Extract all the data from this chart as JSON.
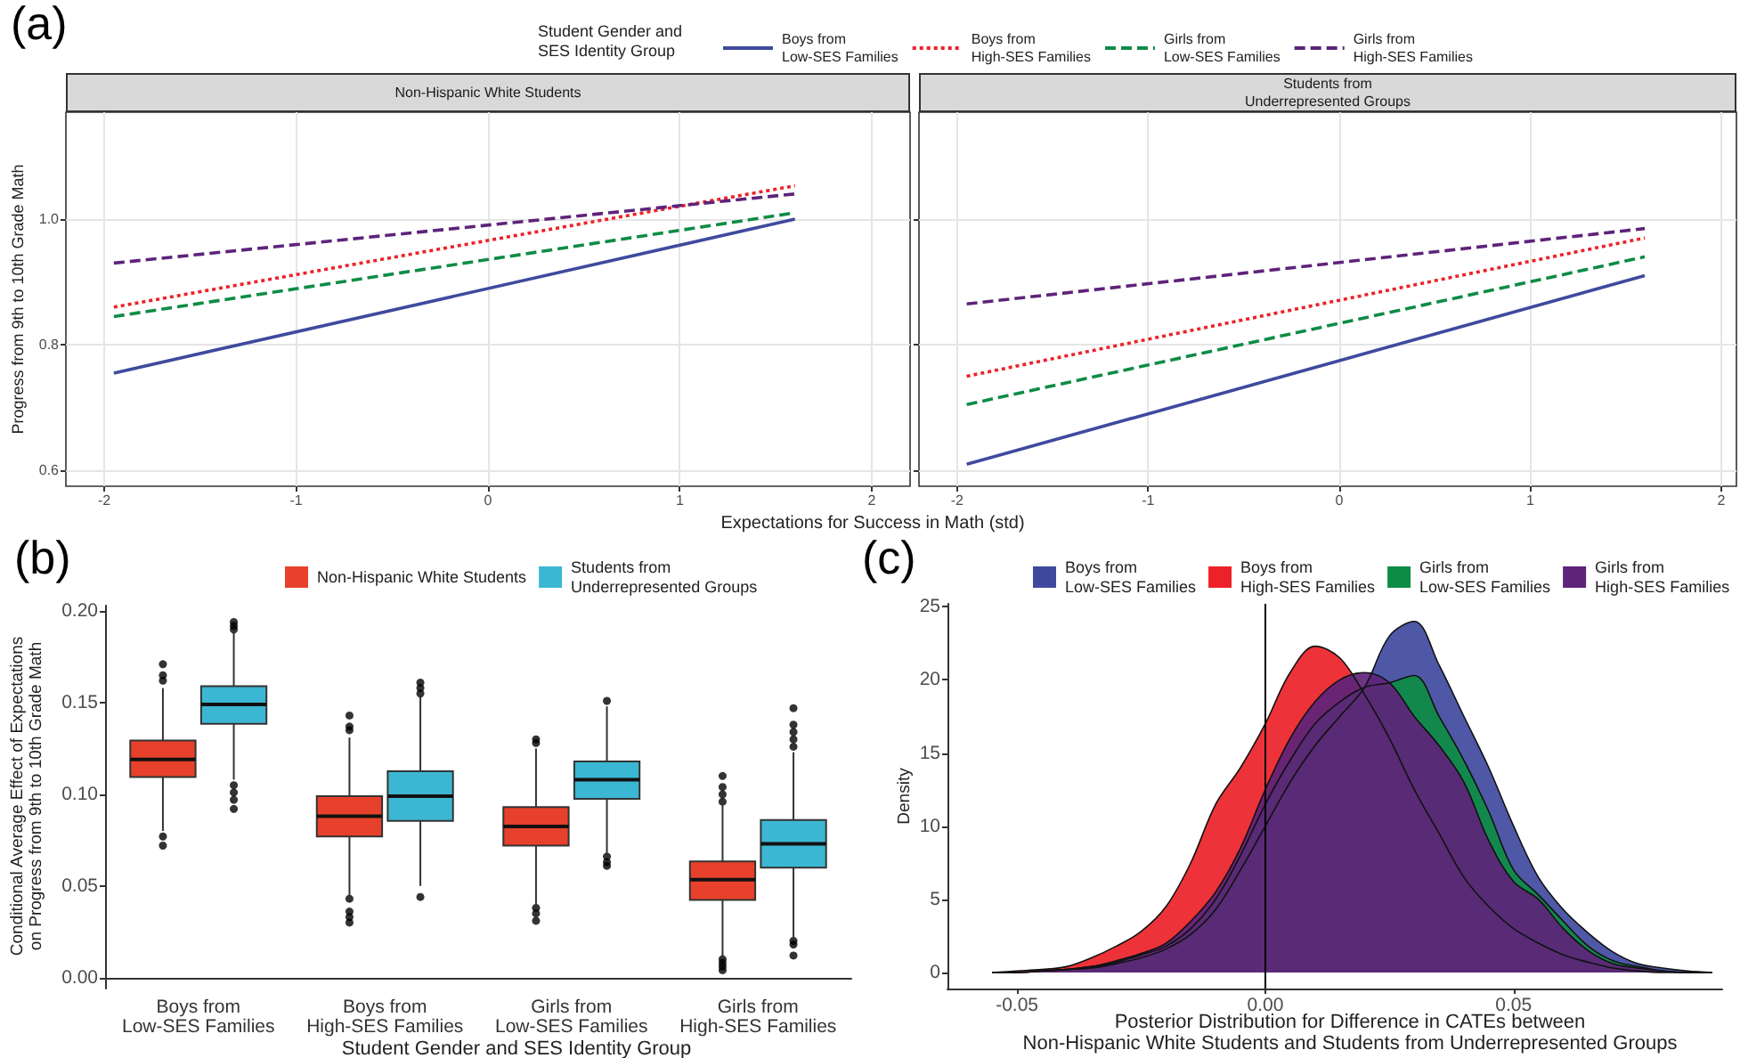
{
  "chart_data": [
    {
      "type": "line",
      "title": "Non-Hispanic White Students",
      "xlabel": "Expectations for Success in Math (std)",
      "ylabel": "Progress from 9th to 10th Grade Math",
      "legend_title": "Student Gender and\nSES Identity Group",
      "annotations": [
        "(a)"
      ],
      "x": [
        -1.95,
        1.6
      ],
      "series": [
        {
          "name": "Boys from\nLow-SES Families",
          "color": "#3f4a9e",
          "line_style": "solid",
          "values": [
            0.755,
            1.0
          ]
        },
        {
          "name": "Boys from\nHigh-SES Families",
          "color": "#ec2228",
          "line_style": "dotted",
          "values": [
            0.86,
            1.053
          ]
        },
        {
          "name": "Girls from\nLow-SES Families",
          "color": "#0e8c45",
          "line_style": "dashed",
          "values": [
            0.845,
            1.01
          ]
        },
        {
          "name": "Girls from\nHigh-SES Families",
          "color": "#5e237a",
          "line_style": "dashed",
          "values": [
            0.93,
            1.04
          ]
        }
      ],
      "xlim": [
        -2.2,
        2.2
      ],
      "xticks": [
        -2,
        -1,
        0,
        1,
        2
      ],
      "ylim": [
        0.575,
        1.17
      ],
      "yticks": [
        0.6,
        0.8,
        {
          "value": 1.0,
          "label": "1.0"
        }
      ],
      "grid": true,
      "legend": "top",
      "marker": "none"
    },
    {
      "type": "line",
      "title": "Students from\nUnderrepresented Groups",
      "x": [
        -1.95,
        1.6
      ],
      "series": [
        {
          "color": "#3f4a9e",
          "line_style": "solid",
          "values": [
            0.61,
            0.91
          ]
        },
        {
          "color": "#ec2228",
          "line_style": "dotted",
          "values": [
            0.75,
            0.97
          ]
        },
        {
          "color": "#0e8c45",
          "line_style": "dashed",
          "values": [
            0.705,
            0.94
          ]
        },
        {
          "color": "#5e237a",
          "line_style": "dashed",
          "values": [
            0.865,
            0.985
          ]
        }
      ],
      "xlim": [
        -2.2,
        2.08
      ],
      "xticks": [
        -2,
        -1,
        0,
        1,
        2
      ],
      "ylim": [
        0.575,
        1.17
      ],
      "yticks": [
        0.6,
        0.8,
        1
      ],
      "tick_labels": "x",
      "grid": true,
      "marker": "none"
    },
    {
      "type": "box",
      "xlabel": "Student Gender and SES Identity Group",
      "ylabel": "Conditional Average Effect of Expectations\non Progress from 9th to 10th Grade Math",
      "annotations": [
        "(b)"
      ],
      "categories": [
        "Boys from\nLow-SES Families",
        "Boys from\nHigh-SES Families",
        "Girls from\nLow-SES Families",
        "Girls from\nHigh-SES Families"
      ],
      "series": [
        {
          "name": "Non-Hispanic White Students",
          "color": "#e8412b",
          "boxes": [
            {
              "low": 0.08,
              "q1": 0.1094,
              "median": 0.119,
              "q3": 0.1294,
              "high": 0.158,
              "outliers": [
                0.162,
                0.165,
                0.171,
                0.077,
                0.072
              ]
            },
            {
              "low": 0.045,
              "q1": 0.077,
              "median": 0.088,
              "q3": 0.099,
              "high": 0.131,
              "outliers": [
                0.135,
                0.137,
                0.143,
                0.043,
                0.036,
                0.033,
                0.03
              ]
            },
            {
              "low": 0.04,
              "q1": 0.072,
              "median": 0.0825,
              "q3": 0.093,
              "high": 0.125,
              "outliers": [
                0.128,
                0.13,
                0.038,
                0.035,
                0.031
              ]
            },
            {
              "low": 0.012,
              "q1": 0.0424,
              "median": 0.0534,
              "q3": 0.0634,
              "high": 0.094,
              "outliers": [
                0.096,
                0.1,
                0.104,
                0.11,
                0.01,
                0.008,
                0.006,
                0.004
              ]
            }
          ]
        },
        {
          "name": "Students from\nUnderrepresented Groups",
          "color": "#3bb7d3",
          "boxes": [
            {
              "low": 0.108,
              "q1": 0.1385,
              "median": 0.149,
              "q3": 0.159,
              "high": 0.188,
              "outliers": [
                0.19,
                0.192,
                0.194,
                0.105,
                0.101,
                0.097,
                0.092
              ]
            },
            {
              "low": 0.05,
              "q1": 0.0855,
              "median": 0.099,
              "q3": 0.1126,
              "high": 0.153,
              "outliers": [
                0.155,
                0.158,
                0.161,
                0.044
              ]
            },
            {
              "low": 0.068,
              "q1": 0.0975,
              "median": 0.108,
              "q3": 0.118,
              "high": 0.148,
              "outliers": [
                0.151,
                0.066,
                0.063,
                0.061
              ]
            },
            {
              "low": 0.022,
              "q1": 0.06,
              "median": 0.073,
              "q3": 0.086,
              "high": 0.123,
              "outliers": [
                0.126,
                0.13,
                0.134,
                0.138,
                0.147,
                0.02,
                0.018,
                0.012
              ]
            }
          ]
        }
      ],
      "ylim": [
        -0.006,
        0.203
      ],
      "yticks": [
        {
          "value": 0,
          "label": "0.00"
        },
        {
          "value": 0.05,
          "label": "0.05"
        },
        {
          "value": 0.1,
          "label": "0.10"
        },
        {
          "value": 0.15,
          "label": "0.15"
        },
        {
          "value": 0.2,
          "label": "0.20"
        }
      ],
      "legend": "top"
    },
    {
      "type": "area",
      "xlabel": "Posterior Distribution for Difference in CATEs between\nNon-Hispanic White Students and Students from Underrepresented Groups",
      "ylabel": "Density",
      "annotations": [
        "(c)"
      ],
      "x": [
        -0.055,
        -0.05,
        -0.045,
        -0.04,
        -0.035,
        -0.03,
        -0.025,
        -0.02,
        -0.015,
        -0.01,
        -0.005,
        0,
        0.005,
        0.01,
        0.015,
        0.02,
        0.025,
        0.03,
        0.035,
        0.04,
        0.045,
        0.05,
        0.055,
        0.06,
        0.065,
        0.07,
        0.075,
        0.08,
        0.085,
        0.09
      ],
      "series": [
        {
          "name": "Boys from\nLow-SES Families",
          "color": "#3f4a9e",
          "values": [
            0,
            0,
            0.1,
            0.2,
            0.3,
            0.6,
            1,
            1.6,
            2.6,
            4.3,
            7,
            10,
            13,
            15.5,
            17.5,
            19.5,
            23,
            24,
            21,
            17.5,
            14,
            10,
            6.5,
            4.3,
            2.7,
            1.4,
            0.6,
            0.3,
            0.1,
            0
          ]
        },
        {
          "name": "Boys from\nHigh-SES Families",
          "color": "#ec2228",
          "values": [
            0,
            0.1,
            0.2,
            0.4,
            1,
            1.8,
            2.8,
            4.5,
            7.5,
            11.5,
            14,
            17,
            20.5,
            22.3,
            21.5,
            19,
            16,
            12.5,
            9.5,
            6.5,
            4.5,
            3,
            2,
            1.2,
            0.7,
            0.3,
            0.1,
            0,
            0,
            0
          ]
        },
        {
          "name": "Girls from\nLow-SES Families",
          "color": "#0e8c45",
          "values": [
            0,
            0,
            0.1,
            0.2,
            0.4,
            0.7,
            1.2,
            1.8,
            3,
            5,
            8,
            11.5,
            14.5,
            17,
            18.5,
            19.5,
            19.8,
            20.3,
            17.5,
            14.5,
            11,
            7,
            5.3,
            3.5,
            1.8,
            0.8,
            0.4,
            0.1,
            0,
            0
          ]
        },
        {
          "name": "Girls from\nHigh-SES Families",
          "color": "#5e237a",
          "values": [
            0,
            0,
            0.1,
            0.2,
            0.4,
            0.8,
            1.3,
            2,
            3.5,
            5.5,
            8.5,
            12.5,
            16,
            18.5,
            20,
            20.5,
            19.8,
            17.5,
            15.5,
            13,
            9,
            6.2,
            5,
            3,
            1.5,
            0.6,
            0.3,
            0.1,
            0,
            0
          ]
        }
      ],
      "xlim": [
        -0.064,
        0.092
      ],
      "xticks": [
        -0.05,
        {
          "value": 0,
          "label": "0.00"
        },
        0.05
      ],
      "ylim": [
        -1.1,
        25.2
      ],
      "yticks": [
        0,
        5,
        10,
        15,
        20,
        25
      ],
      "ref_lines": [
        {
          "axis": "x",
          "value": 0,
          "color": "#000000"
        }
      ],
      "legend": "top",
      "marker": "none"
    }
  ]
}
